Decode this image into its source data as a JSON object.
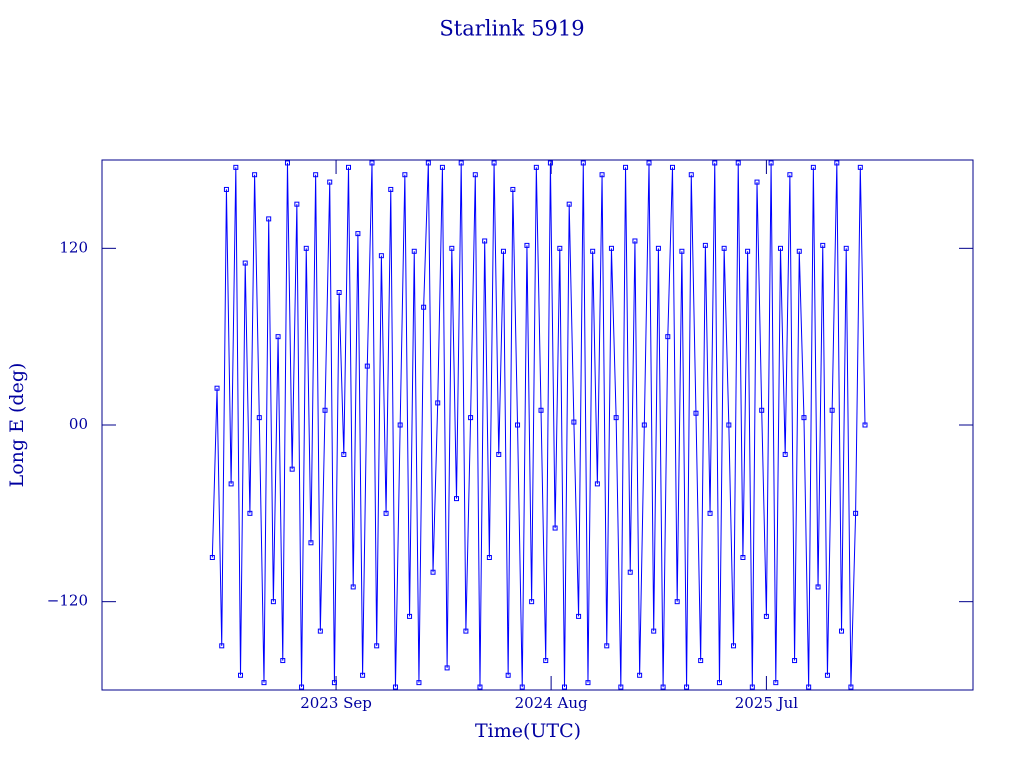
{
  "chart_data": {
    "type": "line",
    "title": "Starlink 5919",
    "x_label": "Time(UTC)",
    "y_label": "Long E (deg)",
    "xlim": [
      2022.67,
      2026.38
    ],
    "xticks": [
      {
        "value": 2023.667,
        "label": "2023 Sep"
      },
      {
        "value": 2024.583,
        "label": "2024 Aug"
      },
      {
        "value": 2025.5,
        "label": "2025 Jul"
      }
    ],
    "ylim": [
      -180,
      180
    ],
    "yticks": [
      {
        "value": -120,
        "label": "−120"
      },
      {
        "value": 0,
        "label": "00"
      },
      120
    ],
    "x": [
      2023.14,
      2023.16,
      2023.18,
      2023.2,
      2023.22,
      2023.24,
      2023.26,
      2023.28,
      2023.3,
      2023.32,
      2023.34,
      2023.36,
      2023.38,
      2023.4,
      2023.42,
      2023.44,
      2023.46,
      2023.48,
      2023.5,
      2023.52,
      2023.54,
      2023.56,
      2023.58,
      2023.6,
      2023.62,
      2023.64,
      2023.66,
      2023.68,
      2023.7,
      2023.72,
      2023.74,
      2023.76,
      2023.78,
      2023.8,
      2023.82,
      2023.84,
      2023.86,
      2023.88,
      2023.9,
      2023.92,
      2023.94,
      2023.96,
      2023.98,
      2024.0,
      2024.02,
      2024.04,
      2024.06,
      2024.08,
      2024.1,
      2024.12,
      2024.14,
      2024.16,
      2024.18,
      2024.2,
      2024.22,
      2024.24,
      2024.26,
      2024.28,
      2024.3,
      2024.32,
      2024.34,
      2024.36,
      2024.38,
      2024.4,
      2024.42,
      2024.44,
      2024.46,
      2024.48,
      2024.5,
      2024.52,
      2024.54,
      2024.56,
      2024.58,
      2024.6,
      2024.62,
      2024.64,
      2024.66,
      2024.68,
      2024.7,
      2024.72,
      2024.74,
      2024.76,
      2024.78,
      2024.8,
      2024.82,
      2024.84,
      2024.86,
      2024.88,
      2024.9,
      2024.92,
      2024.94,
      2024.96,
      2024.98,
      2025.0,
      2025.02,
      2025.04,
      2025.06,
      2025.08,
      2025.1,
      2025.12,
      2025.14,
      2025.16,
      2025.18,
      2025.2,
      2025.22,
      2025.24,
      2025.26,
      2025.28,
      2025.3,
      2025.32,
      2025.34,
      2025.36,
      2025.38,
      2025.4,
      2025.42,
      2025.44,
      2025.46,
      2025.48,
      2025.5,
      2025.52,
      2025.54,
      2025.56,
      2025.58,
      2025.6,
      2025.62,
      2025.64,
      2025.66,
      2025.68,
      2025.7,
      2025.72,
      2025.74,
      2025.76,
      2025.78,
      2025.8,
      2025.82,
      2025.84,
      2025.86,
      2025.88,
      2025.9,
      2025.92
    ],
    "series": [
      {
        "color": "#0000ff",
        "values": [
          -90,
          25,
          -150,
          160,
          -40,
          175,
          -170,
          110,
          -60,
          170,
          5,
          -175,
          140,
          -120,
          60,
          -160,
          178,
          -30,
          150,
          -178,
          120,
          -80,
          170,
          -140,
          10,
          165,
          -175,
          90,
          -20,
          175,
          -110,
          130,
          -170,
          40,
          178,
          -150,
          115,
          -60,
          160,
          -178,
          0,
          170,
          -130,
          118,
          -175,
          80,
          178,
          -100,
          15,
          175,
          -165,
          120,
          -50,
          178,
          -140,
          5,
          170,
          -178,
          125,
          -90,
          178,
          -20,
          118,
          -170,
          160,
          0,
          -178,
          122,
          -120,
          175,
          10,
          -160,
          178,
          -70,
          120,
          -178,
          150,
          2,
          -130,
          178,
          -175,
          118,
          -40,
          170,
          -150,
          120,
          5,
          -178,
          175,
          -100,
          125,
          -170,
          0,
          178,
          -140,
          120,
          -178,
          60,
          175,
          -120,
          118,
          -178,
          170,
          8,
          -160,
          122,
          -60,
          178,
          -175,
          120,
          0,
          -150,
          178,
          -90,
          118,
          -178,
          165,
          10,
          -130,
          178,
          -175,
          120,
          -20,
          170,
          -160,
          118,
          5,
          -178,
          175,
          -110,
          122,
          -170,
          10,
          178,
          -140,
          120,
          -178,
          -60,
          175,
          0
        ]
      }
    ]
  }
}
